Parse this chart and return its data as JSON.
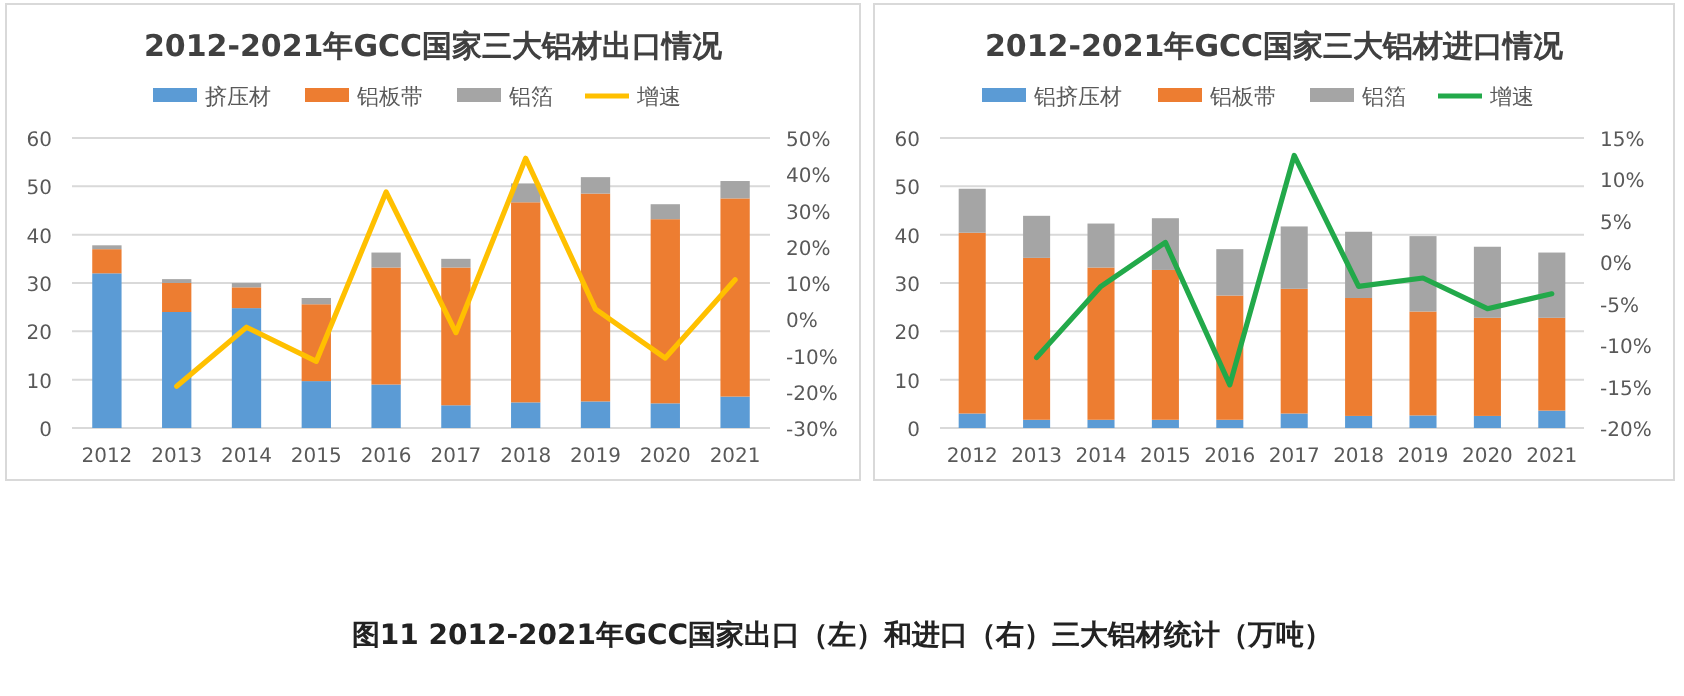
{
  "chart_data": [
    {
      "type": "bar",
      "title": "2012-2021年GCC国家三大铝材出口情况",
      "categories": [
        "2012",
        "2013",
        "2014",
        "2015",
        "2016",
        "2017",
        "2018",
        "2019",
        "2020",
        "2021"
      ],
      "stacked": true,
      "grid": "y",
      "legend": "top",
      "series": [
        {
          "name": "挤压材",
          "color": "#5b9bd5",
          "values": [
            32,
            24,
            24.8,
            9.7,
            9,
            4.7,
            5.3,
            5.5,
            5.1,
            6.5
          ]
        },
        {
          "name": "铝板带",
          "color": "#ed7d31",
          "values": [
            5,
            6,
            4.3,
            15.9,
            24.2,
            28.5,
            41.4,
            43,
            38.1,
            41
          ]
        },
        {
          "name": "铝箔",
          "color": "#a5a5a5",
          "values": [
            0.8,
            0.8,
            0.9,
            1.3,
            3.1,
            1.8,
            3.9,
            3.4,
            3.1,
            3.6
          ]
        },
        {
          "name": "增速",
          "color": "#ffc000",
          "type": "line",
          "axis": "y2",
          "values": [
            null,
            -18.5,
            -2.2,
            -11.6,
            35.1,
            -3.7,
            44.4,
            2.8,
            -10.7,
            10.9
          ]
        }
      ],
      "ylim": [
        0,
        60
      ],
      "yticks": [
        0,
        10,
        20,
        30,
        40,
        50,
        60
      ],
      "y2lim": [
        -30,
        50
      ],
      "y2ticks": [
        {
          "value": -30,
          "label": "-30%"
        },
        {
          "value": -20,
          "label": "-20%"
        },
        {
          "value": -10,
          "label": "-10%"
        },
        {
          "value": 0,
          "label": "0%"
        },
        {
          "value": 10,
          "label": "10%"
        },
        {
          "value": 20,
          "label": "20%"
        },
        {
          "value": 30,
          "label": "30%"
        },
        {
          "value": 40,
          "label": "40%"
        },
        {
          "value": 50,
          "label": "50%"
        }
      ],
      "annotations": [
        "图11 2012-2021年GCC国家出口（左）和进口（右）三大铝材统计（万吨）"
      ]
    },
    {
      "type": "bar",
      "title": "2012-2021年GCC国家三大铝材进口情况",
      "categories": [
        "2012",
        "2013",
        "2014",
        "2015",
        "2016",
        "2017",
        "2018",
        "2019",
        "2020",
        "2021"
      ],
      "stacked": true,
      "grid": "y",
      "legend": "top",
      "series": [
        {
          "name": "铝挤压材",
          "color": "#5b9bd5",
          "values": [
            3,
            1.7,
            1.7,
            1.7,
            1.7,
            3,
            2.5,
            2.6,
            2.5,
            3.6
          ]
        },
        {
          "name": "铝板带",
          "color": "#ed7d31",
          "values": [
            37.4,
            33.5,
            31.5,
            31,
            25.7,
            25.8,
            24.4,
            21.5,
            20.3,
            19.2
          ]
        },
        {
          "name": "铝箔",
          "color": "#a5a5a5",
          "values": [
            9.1,
            8.7,
            9.1,
            10.7,
            9.6,
            12.9,
            13.7,
            15.6,
            14.7,
            13.5
          ]
        },
        {
          "name": "增速",
          "color": "#22a94a",
          "type": "line",
          "axis": "y2",
          "values": [
            null,
            -11.5,
            -2.9,
            2.4,
            -14.8,
            12.9,
            -2.9,
            -1.9,
            -5.6,
            -3.8
          ]
        }
      ],
      "ylim": [
        0,
        60
      ],
      "yticks": [
        0,
        10,
        20,
        30,
        40,
        50,
        60
      ],
      "y2lim": [
        -20,
        15
      ],
      "y2ticks": [
        {
          "value": -20,
          "label": "-20%"
        },
        {
          "value": -15,
          "label": "-15%"
        },
        {
          "value": -10,
          "label": "-10%"
        },
        {
          "value": -5,
          "label": "-5%"
        },
        {
          "value": 0,
          "label": "0%"
        },
        {
          "value": 5,
          "label": "5%"
        },
        {
          "value": 10,
          "label": "10%"
        },
        {
          "value": 15,
          "label": "15%"
        }
      ]
    }
  ]
}
